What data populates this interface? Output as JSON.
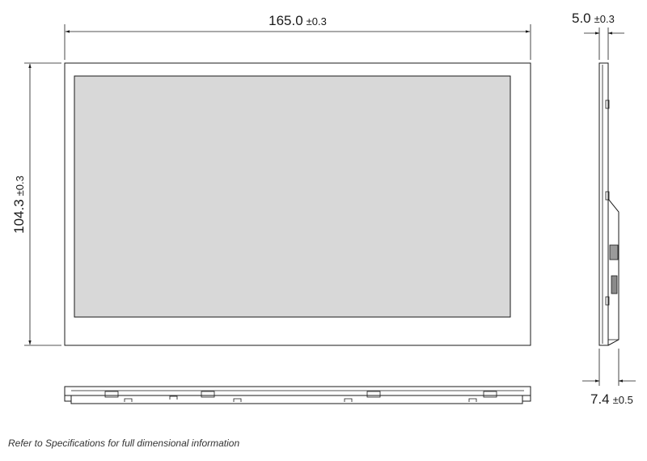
{
  "dimensions": {
    "width": {
      "value": "165.0",
      "tolerance": "±0.3"
    },
    "height": {
      "value": "104.3",
      "tolerance": "±0.3"
    },
    "depth_front": {
      "value": "5.0",
      "tolerance": "±0.3"
    },
    "depth_total": {
      "value": "7.4",
      "tolerance": "±0.5"
    }
  },
  "note": "Refer to Specifications for full dimensional information",
  "colors": {
    "line": "#1a1a1a",
    "screen": "#d8d8d8",
    "background": "#ffffff"
  }
}
